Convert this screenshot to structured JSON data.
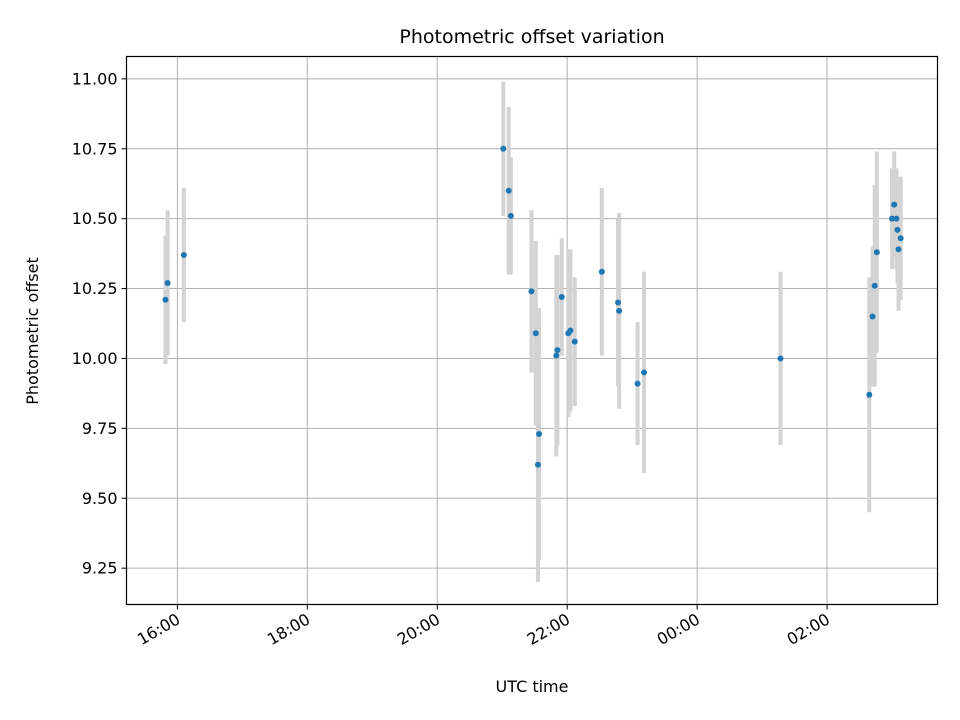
{
  "chart_data": {
    "type": "scatter",
    "title": "Photometric offset variation",
    "xlabel": "UTC time",
    "ylabel": "Photometric offset",
    "x_ticks": [
      "16:00",
      "18:00",
      "20:00",
      "22:00",
      "00:00",
      "02:00"
    ],
    "y_ticks": [
      "9.25",
      "9.50",
      "9.75",
      "10.00",
      "10.25",
      "10.50",
      "10.75",
      "11.00"
    ],
    "xlim": [
      "2024-01-01T15:13",
      "2024-01-02T03:42"
    ],
    "ylim": [
      9.12,
      11.08
    ],
    "grid": true,
    "marker_color": "#1f77b4",
    "errorbar_color": "#d3d3d3",
    "points": [
      {
        "x": "2024-01-01T15:49",
        "y": 10.21,
        "err": 0.23
      },
      {
        "x": "2024-01-01T15:51",
        "y": 10.27,
        "err": 0.26
      },
      {
        "x": "2024-01-01T16:06",
        "y": 10.37,
        "err": 0.24
      },
      {
        "x": "2024-01-01T21:01",
        "y": 10.75,
        "err": 0.24
      },
      {
        "x": "2024-01-01T21:06",
        "y": 10.6,
        "err": 0.3
      },
      {
        "x": "2024-01-01T21:08",
        "y": 10.51,
        "err": 0.21
      },
      {
        "x": "2024-01-01T21:27",
        "y": 10.24,
        "err": 0.29
      },
      {
        "x": "2024-01-01T21:31",
        "y": 10.09,
        "err": 0.33
      },
      {
        "x": "2024-01-01T21:34",
        "y": 9.73,
        "err": 0.45
      },
      {
        "x": "2024-01-01T21:33",
        "y": 9.62,
        "err": 0.42
      },
      {
        "x": "2024-01-01T21:50",
        "y": 10.01,
        "err": 0.36
      },
      {
        "x": "2024-01-01T21:51",
        "y": 10.03,
        "err": 0.34
      },
      {
        "x": "2024-01-01T21:55",
        "y": 10.22,
        "err": 0.21
      },
      {
        "x": "2024-01-01T22:01",
        "y": 10.09,
        "err": 0.3
      },
      {
        "x": "2024-01-01T22:03",
        "y": 10.1,
        "err": 0.29
      },
      {
        "x": "2024-01-01T22:07",
        "y": 10.06,
        "err": 0.23
      },
      {
        "x": "2024-01-01T22:32",
        "y": 10.31,
        "err": 0.3
      },
      {
        "x": "2024-01-01T22:47",
        "y": 10.2,
        "err": 0.3
      },
      {
        "x": "2024-01-01T22:48",
        "y": 10.17,
        "err": 0.35
      },
      {
        "x": "2024-01-01T23:05",
        "y": 9.91,
        "err": 0.22
      },
      {
        "x": "2024-01-01T23:11",
        "y": 9.95,
        "err": 0.36
      },
      {
        "x": "2024-01-02T01:17",
        "y": 10.0,
        "err": 0.31
      },
      {
        "x": "2024-01-02T02:39",
        "y": 9.87,
        "err": 0.42
      },
      {
        "x": "2024-01-02T02:42",
        "y": 10.15,
        "err": 0.25
      },
      {
        "x": "2024-01-02T02:44",
        "y": 10.26,
        "err": 0.36
      },
      {
        "x": "2024-01-02T02:46",
        "y": 10.38,
        "err": 0.36
      },
      {
        "x": "2024-01-02T03:00",
        "y": 10.5,
        "err": 0.18
      },
      {
        "x": "2024-01-02T03:02",
        "y": 10.55,
        "err": 0.19
      },
      {
        "x": "2024-01-02T03:04",
        "y": 10.5,
        "err": 0.18
      },
      {
        "x": "2024-01-02T03:05",
        "y": 10.46,
        "err": 0.19
      },
      {
        "x": "2024-01-02T03:06",
        "y": 10.39,
        "err": 0.22
      },
      {
        "x": "2024-01-02T03:08",
        "y": 10.43,
        "err": 0.22
      }
    ]
  }
}
